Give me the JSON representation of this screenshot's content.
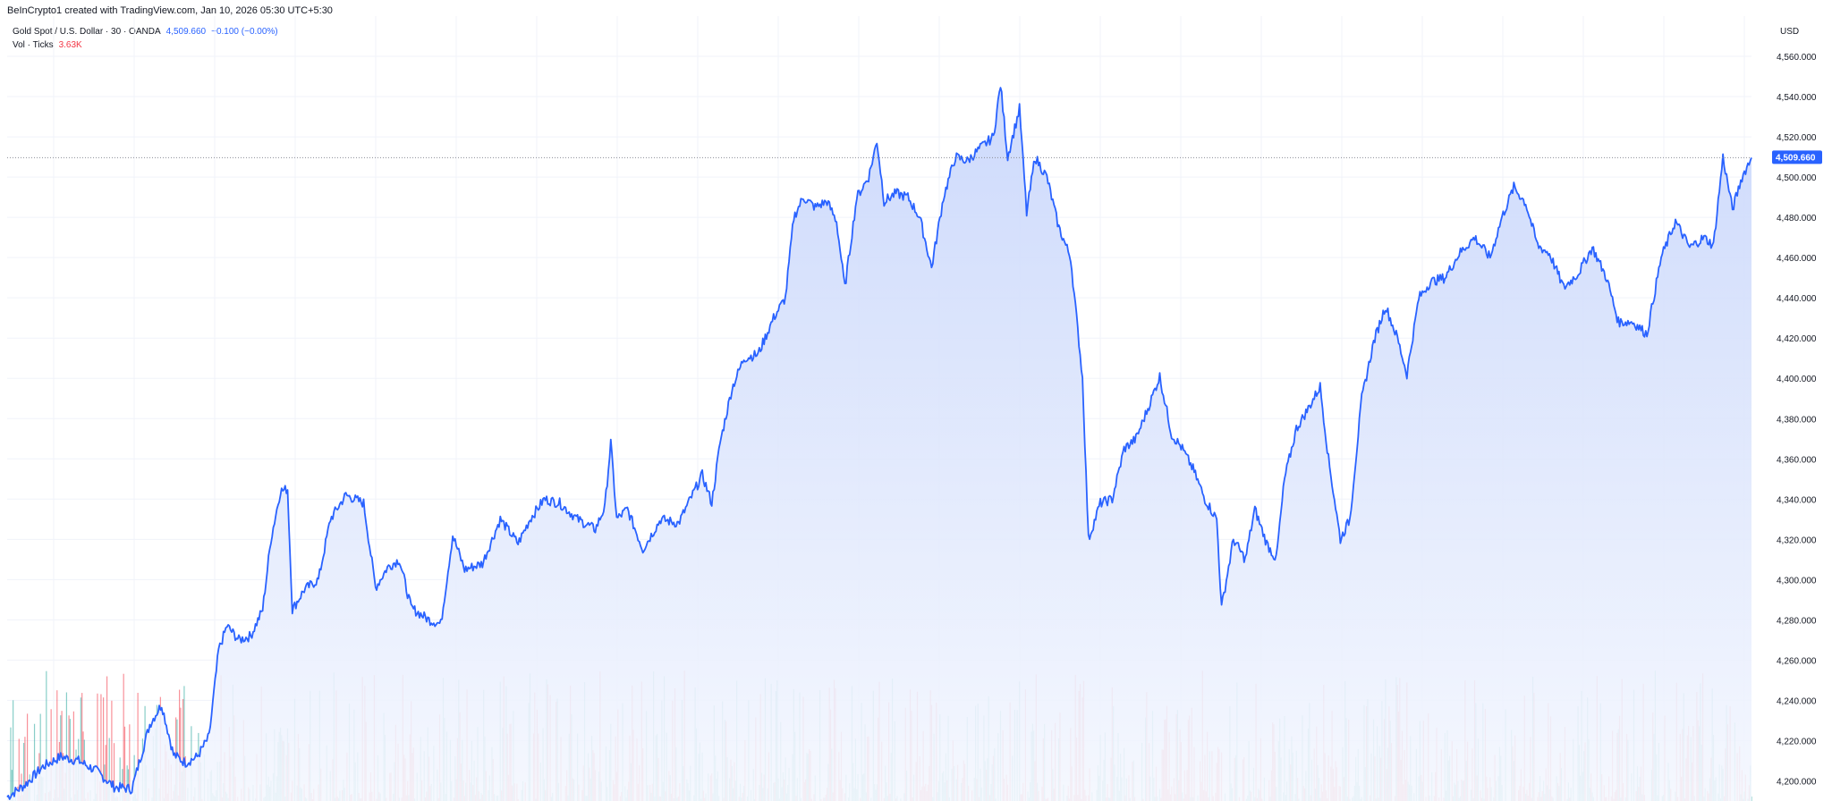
{
  "attribution": "BeInCrypto1 created with TradingView.com, Jan 10, 2026 05:30 UTC+5:30",
  "legend": {
    "symbol": "Gold Spot / U.S. Dollar · 30 · OANDA",
    "price": "4,509.660",
    "change": "−0.100 (−0.00%)",
    "volume_label": "Vol · Ticks",
    "volume_value": "3.63K"
  },
  "currency": "USD",
  "last_price_label": "4,509.660",
  "colors": {
    "line": "#2962ff",
    "area_top": "#c8d6fb",
    "area_bottom": "#f4f7fe",
    "vol_up": "#26a69a",
    "vol_down": "#f23645",
    "grid": "#f0f3fa",
    "price_tag": "#2962ff"
  },
  "chart_data": {
    "type": "area",
    "title": "",
    "ylabel": "",
    "xlabel": "",
    "ylim": [
      4190,
      4580
    ],
    "y_ticks": [
      4200,
      4220,
      4240,
      4260,
      4280,
      4300,
      4320,
      4340,
      4360,
      4380,
      4400,
      4420,
      4440,
      4460,
      4480,
      4500,
      4520,
      4540,
      4560
    ],
    "y_tick_labels": [
      "4,200.000",
      "4,220.000",
      "4,240.000",
      "4,260.000",
      "4,280.000",
      "4,300.000",
      "4,320.000",
      "4,340.000",
      "4,360.000",
      "4,380.000",
      "4,400.000",
      "4,420.000",
      "4,440.000",
      "4,460.000",
      "4,480.000",
      "4,500.000",
      "4,520.000",
      "4,540.000",
      "4,560.000"
    ],
    "last_value": 4509.66,
    "grid": true,
    "price_anchors": [
      [
        0,
        4192
      ],
      [
        15,
        4198
      ],
      [
        30,
        4207
      ],
      [
        45,
        4212
      ],
      [
        60,
        4210
      ],
      [
        75,
        4205
      ],
      [
        90,
        4197
      ],
      [
        105,
        4196
      ],
      [
        120,
        4228
      ],
      [
        130,
        4238
      ],
      [
        140,
        4213
      ],
      [
        150,
        4209
      ],
      [
        160,
        4212
      ],
      [
        170,
        4222
      ],
      [
        178,
        4265
      ],
      [
        185,
        4277
      ],
      [
        195,
        4270
      ],
      [
        205,
        4272
      ],
      [
        215,
        4285
      ],
      [
        222,
        4320
      ],
      [
        230,
        4344
      ],
      [
        236,
        4345
      ],
      [
        240,
        4285
      ],
      [
        250,
        4295
      ],
      [
        262,
        4300
      ],
      [
        272,
        4330
      ],
      [
        285,
        4342
      ],
      [
        300,
        4338
      ],
      [
        310,
        4296
      ],
      [
        320,
        4306
      ],
      [
        330,
        4310
      ],
      [
        340,
        4286
      ],
      [
        355,
        4280
      ],
      [
        365,
        4278
      ],
      [
        375,
        4322
      ],
      [
        385,
        4305
      ],
      [
        400,
        4308
      ],
      [
        415,
        4330
      ],
      [
        430,
        4318
      ],
      [
        440,
        4330
      ],
      [
        452,
        4340
      ],
      [
        465,
        4338
      ],
      [
        480,
        4330
      ],
      [
        495,
        4325
      ],
      [
        503,
        4336
      ],
      [
        508,
        4368
      ],
      [
        513,
        4330
      ],
      [
        522,
        4335
      ],
      [
        535,
        4315
      ],
      [
        550,
        4330
      ],
      [
        565,
        4328
      ],
      [
        575,
        4340
      ],
      [
        585,
        4352
      ],
      [
        593,
        4338
      ],
      [
        600,
        4368
      ],
      [
        610,
        4395
      ],
      [
        620,
        4410
      ],
      [
        632,
        4412
      ],
      [
        645,
        4430
      ],
      [
        655,
        4440
      ],
      [
        662,
        4480
      ],
      [
        670,
        4490
      ],
      [
        680,
        4485
      ],
      [
        690,
        4488
      ],
      [
        698,
        4478
      ],
      [
        705,
        4445
      ],
      [
        715,
        4490
      ],
      [
        725,
        4500
      ],
      [
        732,
        4518
      ],
      [
        738,
        4488
      ],
      [
        748,
        4492
      ],
      [
        758,
        4490
      ],
      [
        768,
        4480
      ],
      [
        778,
        4455
      ],
      [
        788,
        4490
      ],
      [
        798,
        4510
      ],
      [
        808,
        4508
      ],
      [
        820,
        4515
      ],
      [
        830,
        4520
      ],
      [
        836,
        4546
      ],
      [
        842,
        4510
      ],
      [
        852,
        4534
      ],
      [
        858,
        4482
      ],
      [
        865,
        4510
      ],
      [
        875,
        4500
      ],
      [
        885,
        4475
      ],
      [
        895,
        4460
      ],
      [
        905,
        4400
      ],
      [
        910,
        4320
      ],
      [
        920,
        4338
      ],
      [
        930,
        4340
      ],
      [
        940,
        4365
      ],
      [
        950,
        4370
      ],
      [
        960,
        4385
      ],
      [
        970,
        4401
      ],
      [
        980,
        4372
      ],
      [
        988,
        4366
      ],
      [
        998,
        4355
      ],
      [
        1008,
        4340
      ],
      [
        1018,
        4330
      ],
      [
        1022,
        4286
      ],
      [
        1032,
        4320
      ],
      [
        1042,
        4310
      ],
      [
        1050,
        4335
      ],
      [
        1060,
        4318
      ],
      [
        1068,
        4310
      ],
      [
        1075,
        4350
      ],
      [
        1085,
        4375
      ],
      [
        1095,
        4385
      ],
      [
        1105,
        4396
      ],
      [
        1112,
        4360
      ],
      [
        1122,
        4320
      ],
      [
        1130,
        4330
      ],
      [
        1140,
        4390
      ],
      [
        1150,
        4418
      ],
      [
        1160,
        4436
      ],
      [
        1170,
        4420
      ],
      [
        1178,
        4402
      ],
      [
        1188,
        4440
      ],
      [
        1198,
        4448
      ],
      [
        1210,
        4450
      ],
      [
        1222,
        4462
      ],
      [
        1235,
        4470
      ],
      [
        1248,
        4460
      ],
      [
        1258,
        4480
      ],
      [
        1268,
        4495
      ],
      [
        1278,
        4487
      ],
      [
        1288,
        4466
      ],
      [
        1298,
        4462
      ],
      [
        1310,
        4445
      ],
      [
        1322,
        4452
      ],
      [
        1334,
        4465
      ],
      [
        1346,
        4450
      ],
      [
        1356,
        4428
      ],
      [
        1368,
        4428
      ],
      [
        1380,
        4422
      ],
      [
        1392,
        4460
      ],
      [
        1404,
        4478
      ],
      [
        1416,
        4465
      ],
      [
        1428,
        4470
      ],
      [
        1436,
        4466
      ],
      [
        1444,
        4510
      ],
      [
        1452,
        4484
      ],
      [
        1460,
        4500
      ],
      [
        1468,
        4509.66
      ]
    ],
    "volume_max": 4000
  }
}
